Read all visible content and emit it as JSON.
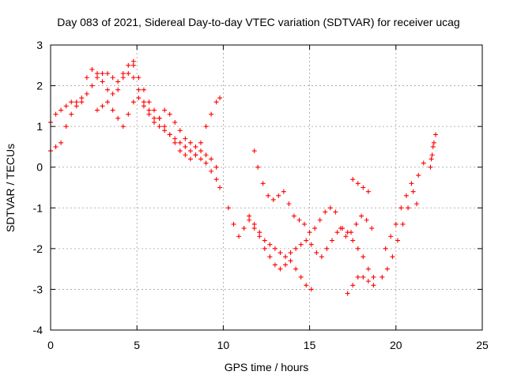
{
  "chart_data": {
    "type": "scatter",
    "title": "Day 083 of 2021, Sidereal Day-to-day VTEC variation (SDTVAR) for receiver ucag",
    "xlabel": "GPS time / hours",
    "ylabel": "SDTVAR / TECUs",
    "xlim": [
      0,
      25
    ],
    "ylim": [
      -4,
      3
    ],
    "xticks": [
      0,
      5,
      10,
      15,
      20,
      25
    ],
    "yticks": [
      -4,
      -3,
      -2,
      -1,
      0,
      1,
      2,
      3
    ],
    "xtick_labels": [
      "0",
      "5",
      "10",
      "15",
      "20",
      "25"
    ],
    "ytick_labels": [
      "-4",
      "-3",
      "-2",
      "-1",
      "0",
      "1",
      "2",
      "3"
    ],
    "grid": true,
    "marker": "+",
    "color": "#ff0000",
    "series": [
      {
        "x": [
          0,
          0.3,
          0.6,
          0.9,
          1.2,
          1.5,
          1.8,
          2.1,
          2.4,
          2.7,
          3.0,
          3.3,
          3.6,
          3.9,
          4.2,
          4.5,
          4.8,
          5.1,
          5.4,
          5.7,
          6.0,
          6.3,
          6.6,
          6.9,
          7.2,
          7.5,
          7.8,
          8.1,
          8.4,
          8.7,
          9.0,
          9.3,
          9.6,
          9.8
        ],
        "y": [
          1.1,
          1.3,
          1.4,
          1.5,
          1.6,
          1.6,
          1.7,
          1.8,
          2.0,
          2.2,
          2.3,
          2.3,
          2.2,
          2.1,
          2.2,
          2.3,
          2.2,
          1.9,
          1.6,
          1.4,
          1.2,
          1.0,
          0.9,
          0.8,
          0.7,
          0.6,
          0.5,
          0.4,
          0.3,
          0.2,
          0.1,
          -0.1,
          -0.3,
          -0.5
        ]
      },
      {
        "x": [
          0,
          0.3,
          0.6,
          0.9,
          1.2,
          1.5,
          1.8,
          2.1,
          2.4,
          2.7,
          3.0,
          3.3,
          3.6,
          3.9,
          4.2,
          4.5,
          4.8
        ],
        "y": [
          0.4,
          0.5,
          0.6,
          1.0,
          1.3,
          1.5,
          1.6,
          2.2,
          2.4,
          2.3,
          2.1,
          1.9,
          1.8,
          1.9,
          2.3,
          2.5,
          2.6
        ]
      },
      {
        "x": [
          4.8,
          5.1,
          5.4,
          5.7,
          6.0,
          6.3,
          6.6,
          6.9,
          7.2,
          7.5,
          7.8,
          8.1,
          8.4,
          8.7,
          9.0,
          9.3,
          9.6,
          9.8
        ],
        "y": [
          2.5,
          2.2,
          1.9,
          1.6,
          1.4,
          1.2,
          1.0,
          0.8,
          0.6,
          0.4,
          0.3,
          0.2,
          0.3,
          0.6,
          1.0,
          1.3,
          1.6,
          1.7
        ]
      },
      {
        "x": [
          2.7,
          3.0,
          3.3,
          3.6,
          3.9,
          4.2,
          4.5,
          4.8,
          5.1,
          5.4,
          5.7,
          6.0,
          6.3,
          6.6,
          6.9,
          7.2,
          7.5,
          7.8,
          8.1,
          8.4,
          8.7,
          9.0,
          9.3,
          9.6
        ],
        "y": [
          1.4,
          1.5,
          1.6,
          1.4,
          1.2,
          1.0,
          1.3,
          1.6,
          1.7,
          1.5,
          1.3,
          1.1,
          1.2,
          1.4,
          1.3,
          1.1,
          0.9,
          0.7,
          0.6,
          0.5,
          0.4,
          0.3,
          0.2,
          0.0
        ]
      },
      {
        "x": [
          11.8,
          12.0,
          12.3,
          12.6,
          12.9,
          13.2,
          13.5,
          13.8,
          14.1,
          14.4,
          14.7,
          15.0,
          15.3,
          15.6,
          15.9,
          16.2,
          16.5,
          16.8,
          17.1,
          17.4,
          17.7,
          18.0,
          18.3,
          18.6
        ],
        "y": [
          0.4,
          0.0,
          -0.4,
          -0.7,
          -0.8,
          -0.7,
          -0.6,
          -0.9,
          -1.2,
          -1.3,
          -1.4,
          -1.6,
          -1.5,
          -1.3,
          -1.1,
          -1.0,
          -1.1,
          -1.5,
          -1.7,
          -1.6,
          -1.4,
          -1.2,
          -1.3,
          -1.5
        ]
      },
      {
        "x": [
          10.3,
          10.6,
          10.9,
          11.2,
          11.5,
          11.8,
          12.1,
          12.4,
          12.7,
          13.0,
          13.3,
          13.6,
          13.9,
          14.2,
          14.5,
          14.8,
          15.1,
          15.4,
          15.7,
          16.0,
          16.3,
          16.6,
          16.9,
          17.2,
          17.5,
          17.8,
          18.1,
          18.4,
          18.7
        ],
        "y": [
          -1.0,
          -1.4,
          -1.7,
          -1.5,
          -1.2,
          -1.4,
          -1.6,
          -1.8,
          -1.9,
          -2.0,
          -2.1,
          -2.2,
          -2.1,
          -2.0,
          -1.9,
          -1.8,
          -1.9,
          -2.1,
          -2.2,
          -2.0,
          -1.8,
          -1.6,
          -1.5,
          -1.6,
          -1.8,
          -2.0,
          -2.2,
          -2.5,
          -2.7
        ]
      },
      {
        "x": [
          11.5,
          11.8,
          12.1,
          12.4,
          12.7,
          13.0,
          13.3,
          13.6,
          13.9,
          14.2,
          14.5,
          14.8,
          15.1
        ],
        "y": [
          -1.3,
          -1.5,
          -1.7,
          -2.0,
          -2.2,
          -2.4,
          -2.5,
          -2.4,
          -2.3,
          -2.5,
          -2.7,
          -2.9,
          -3.0
        ]
      },
      {
        "x": [
          17.2,
          17.5,
          17.8,
          18.1,
          18.4,
          18.7,
          17.5,
          17.8,
          18.1,
          18.4
        ],
        "y": [
          -3.1,
          -2.9,
          -2.7,
          -2.7,
          -2.8,
          -2.9,
          -0.3,
          -0.4,
          -0.5,
          -0.6
        ]
      },
      {
        "x": [
          19.2,
          19.5,
          19.8,
          20.1,
          20.4,
          20.7,
          21.0,
          21.3,
          21.6,
          19.4,
          19.7,
          20.0,
          20.3,
          20.6,
          20.9,
          21.2
        ],
        "y": [
          -2.7,
          -2.5,
          -2.2,
          -1.8,
          -1.4,
          -1.0,
          -0.6,
          -0.2,
          0.1,
          -2.0,
          -1.7,
          -1.4,
          -1.0,
          -0.7,
          -0.4,
          -0.9
        ]
      },
      {
        "x": [
          22.0,
          22.1,
          22.2,
          22.3,
          22.05,
          22.15
        ],
        "y": [
          0.0,
          0.3,
          0.6,
          0.8,
          0.2,
          0.5
        ]
      }
    ]
  }
}
